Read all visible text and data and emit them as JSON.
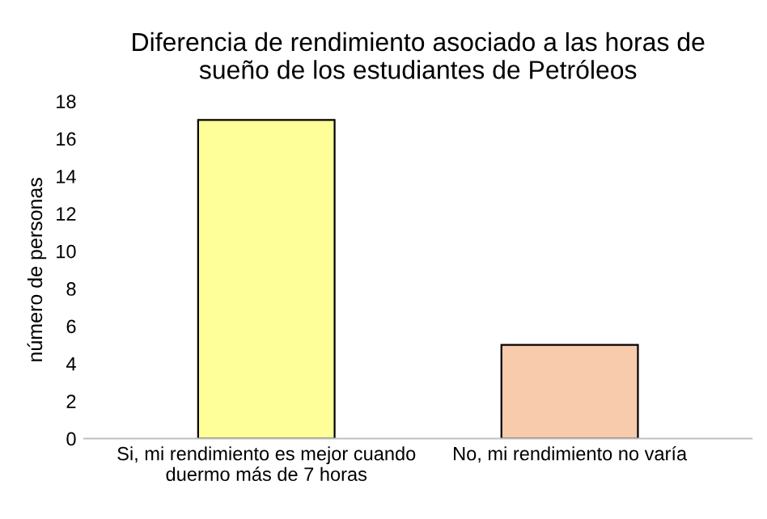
{
  "chart_data": {
    "type": "bar",
    "title": "Diferencia de rendimiento asociado a las horas de\nsueño de los estudiantes de Petróleos",
    "ylabel": "número de personas",
    "categories": [
      "Si, mi rendimiento es mejor cuando\nduermo más de 7 horas",
      "No, mi rendimiento no varía"
    ],
    "values": [
      17,
      5
    ],
    "colors": [
      "#ffff99",
      "#f8cbad"
    ],
    "ylim": [
      0,
      18
    ],
    "yticks": [
      0,
      2,
      4,
      6,
      8,
      10,
      12,
      14,
      16,
      18
    ],
    "grid": false,
    "legend": false
  }
}
